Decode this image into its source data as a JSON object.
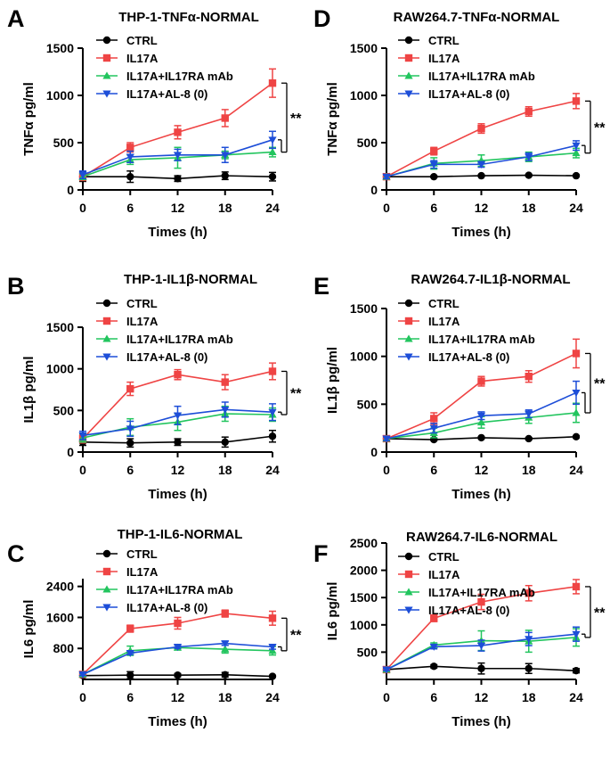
{
  "chart_data": [
    {
      "panel_label": "A",
      "type": "line",
      "title": "THP-1-TNFα-NORMAL",
      "xlabel": "Times (h)",
      "ylabel": "TNFα pg/ml",
      "xlim": [
        0,
        24
      ],
      "ylim": [
        0,
        1500
      ],
      "x_ticks": [
        0,
        6,
        12,
        18,
        24
      ],
      "y_ticks": [
        0,
        500,
        1000,
        1500
      ],
      "x": [
        0,
        6,
        12,
        18,
        24
      ],
      "legend": [
        "CTRL",
        "IL17A",
        "IL17A+IL17RA mAb",
        "IL17A+AL-8 (0)"
      ],
      "series": [
        {
          "name": "CTRL",
          "color": "#000000",
          "marker": "circle",
          "values": [
            140,
            140,
            120,
            150,
            140
          ],
          "errors": [
            50,
            60,
            30,
            40,
            45
          ]
        },
        {
          "name": "IL17A",
          "color": "#ef4444",
          "marker": "square",
          "values": [
            140,
            450,
            610,
            760,
            1130
          ],
          "errors": [
            40,
            50,
            70,
            90,
            150
          ]
        },
        {
          "name": "IL17A+IL17RA mAb",
          "color": "#22c55e",
          "marker": "triangle-up",
          "values": [
            140,
            320,
            340,
            370,
            400
          ],
          "errors": [
            30,
            50,
            110,
            40,
            50
          ]
        },
        {
          "name": "IL17A+AL-8 (0)",
          "color": "#1d4ed8",
          "marker": "triangle-down",
          "values": [
            160,
            350,
            370,
            370,
            530
          ],
          "errors": [
            40,
            60,
            60,
            80,
            90
          ]
        }
      ],
      "significance": "**"
    },
    {
      "panel_label": "D",
      "type": "line",
      "title": "RAW264.7-TNFα-NORMAL",
      "xlabel": "Times (h)",
      "ylabel": "TNFα pg/ml",
      "xlim": [
        0,
        24
      ],
      "ylim": [
        0,
        1500
      ],
      "x_ticks": [
        0,
        6,
        12,
        18,
        24
      ],
      "y_ticks": [
        0,
        500,
        1000,
        1500
      ],
      "x": [
        0,
        6,
        12,
        18,
        24
      ],
      "legend": [
        "CTRL",
        "IL17A",
        "IL17A+IL17RA mAb",
        "IL17A+AL-8 (0)"
      ],
      "series": [
        {
          "name": "CTRL",
          "color": "#000000",
          "marker": "circle",
          "values": [
            140,
            140,
            150,
            155,
            150
          ],
          "errors": [
            10,
            10,
            10,
            10,
            10
          ]
        },
        {
          "name": "IL17A",
          "color": "#ef4444",
          "marker": "square",
          "values": [
            140,
            410,
            650,
            830,
            940
          ],
          "errors": [
            20,
            40,
            50,
            50,
            80
          ]
        },
        {
          "name": "IL17A+IL17RA mAb",
          "color": "#22c55e",
          "marker": "triangle-up",
          "values": [
            140,
            280,
            310,
            350,
            390
          ],
          "errors": [
            20,
            60,
            60,
            50,
            50
          ]
        },
        {
          "name": "IL17A+AL-8 (0)",
          "color": "#1d4ed8",
          "marker": "triangle-down",
          "values": [
            140,
            270,
            270,
            350,
            470
          ],
          "errors": [
            20,
            40,
            30,
            40,
            50
          ]
        }
      ],
      "significance": "**"
    },
    {
      "panel_label": "B",
      "type": "line",
      "title": "THP-1-IL1β-NORMAL",
      "xlabel": "Times (h)",
      "ylabel": "IL1β pg/ml",
      "xlim": [
        0,
        24
      ],
      "ylim": [
        0,
        1500
      ],
      "x_ticks": [
        0,
        6,
        12,
        18,
        24
      ],
      "y_ticks": [
        0,
        500,
        1000,
        1500
      ],
      "x": [
        0,
        6,
        12,
        18,
        24
      ],
      "legend": [
        "CTRL",
        "IL17A",
        "IL17A+IL17RA mAb",
        "IL17A+AL-8 (0)"
      ],
      "series": [
        {
          "name": "CTRL",
          "color": "#000000",
          "marker": "circle",
          "values": [
            120,
            110,
            120,
            120,
            190
          ],
          "errors": [
            40,
            50,
            40,
            60,
            70
          ]
        },
        {
          "name": "IL17A",
          "color": "#ef4444",
          "marker": "square",
          "values": [
            160,
            760,
            930,
            840,
            970
          ],
          "errors": [
            50,
            80,
            60,
            90,
            100
          ]
        },
        {
          "name": "IL17A+IL17RA mAb",
          "color": "#22c55e",
          "marker": "triangle-up",
          "values": [
            170,
            300,
            360,
            460,
            450
          ],
          "errors": [
            50,
            100,
            100,
            90,
            80
          ]
        },
        {
          "name": "IL17A+AL-8 (0)",
          "color": "#1d4ed8",
          "marker": "triangle-down",
          "values": [
            200,
            280,
            440,
            510,
            480
          ],
          "errors": [
            50,
            90,
            110,
            90,
            100
          ]
        }
      ],
      "significance": "**"
    },
    {
      "panel_label": "E",
      "type": "line",
      "title": "RAW264.7-IL1β-NORMAL",
      "xlabel": "Times (h)",
      "ylabel": "IL1β pg/ml",
      "xlim": [
        0,
        24
      ],
      "ylim": [
        0,
        1500
      ],
      "x_ticks": [
        0,
        6,
        12,
        18,
        24
      ],
      "y_ticks": [
        0,
        500,
        1000,
        1500
      ],
      "x": [
        0,
        6,
        12,
        18,
        24
      ],
      "legend": [
        "CTRL",
        "IL17A",
        "IL17A+IL17RA mAb",
        "IL17A+AL-8 (0)"
      ],
      "series": [
        {
          "name": "CTRL",
          "color": "#000000",
          "marker": "circle",
          "values": [
            140,
            130,
            150,
            140,
            160
          ],
          "errors": [
            10,
            10,
            10,
            10,
            10
          ]
        },
        {
          "name": "IL17A",
          "color": "#ef4444",
          "marker": "square",
          "values": [
            140,
            350,
            740,
            790,
            1030
          ],
          "errors": [
            20,
            60,
            50,
            60,
            150
          ]
        },
        {
          "name": "IL17A+IL17RA mAb",
          "color": "#22c55e",
          "marker": "triangle-up",
          "values": [
            140,
            200,
            310,
            360,
            410
          ],
          "errors": [
            20,
            50,
            60,
            60,
            100
          ]
        },
        {
          "name": "IL17A+AL-8 (0)",
          "color": "#1d4ed8",
          "marker": "triangle-down",
          "values": [
            140,
            250,
            380,
            400,
            620
          ],
          "errors": [
            20,
            50,
            40,
            40,
            120
          ]
        }
      ],
      "significance": "**"
    },
    {
      "panel_label": "C",
      "type": "line",
      "title": "THP-1-IL6-NORMAL",
      "xlabel": "Times (h)",
      "ylabel": "IL6 pg/ml",
      "xlim": [
        0,
        24
      ],
      "ylim": [
        0,
        2600
      ],
      "x_ticks": [
        0,
        6,
        12,
        18,
        24
      ],
      "y_ticks": [
        800,
        1600,
        2400
      ],
      "x": [
        0,
        6,
        12,
        18,
        24
      ],
      "legend": [
        "CTRL",
        "IL17A",
        "IL17A+IL17RA mAb",
        "IL17A+AL-8 (0)"
      ],
      "series": [
        {
          "name": "CTRL",
          "color": "#000000",
          "marker": "circle",
          "values": [
            100,
            110,
            110,
            120,
            80
          ],
          "errors": [
            30,
            90,
            40,
            60,
            20
          ]
        },
        {
          "name": "IL17A",
          "color": "#ef4444",
          "marker": "square",
          "values": [
            130,
            1310,
            1450,
            1700,
            1580
          ],
          "errors": [
            30,
            90,
            150,
            90,
            180
          ]
        },
        {
          "name": "IL17A+IL17RA mAb",
          "color": "#22c55e",
          "marker": "triangle-up",
          "values": [
            130,
            740,
            820,
            780,
            740
          ],
          "errors": [
            30,
            120,
            60,
            100,
            110
          ]
        },
        {
          "name": "IL17A+AL-8 (0)",
          "color": "#1d4ed8",
          "marker": "triangle-down",
          "values": [
            130,
            680,
            840,
            930,
            840
          ],
          "errors": [
            30,
            40,
            40,
            50,
            60
          ]
        }
      ],
      "significance": "**"
    },
    {
      "panel_label": "F",
      "type": "line",
      "title": "RAW264.7-IL6-NORMAL",
      "xlabel": "Times (h)",
      "ylabel": "IL6 pg/ml",
      "xlim": [
        0,
        24
      ],
      "ylim": [
        0,
        2500
      ],
      "x_ticks": [
        0,
        6,
        12,
        18,
        24
      ],
      "y_ticks": [
        500,
        1000,
        1500,
        2000,
        2500
      ],
      "x": [
        0,
        6,
        12,
        18,
        24
      ],
      "legend": [
        "CTRL",
        "IL17A",
        "IL17A+IL17RA mAb",
        "IL17A+AL-8 (0)"
      ],
      "series": [
        {
          "name": "CTRL",
          "color": "#000000",
          "marker": "circle",
          "values": [
            180,
            240,
            200,
            200,
            160
          ],
          "errors": [
            20,
            30,
            100,
            90,
            40
          ]
        },
        {
          "name": "IL17A",
          "color": "#ef4444",
          "marker": "square",
          "values": [
            180,
            1120,
            1420,
            1580,
            1700
          ],
          "errors": [
            20,
            60,
            140,
            140,
            130
          ]
        },
        {
          "name": "IL17A+IL17RA mAb",
          "color": "#22c55e",
          "marker": "triangle-up",
          "values": [
            180,
            630,
            710,
            700,
            770
          ],
          "errors": [
            20,
            40,
            180,
            200,
            160
          ]
        },
        {
          "name": "IL17A+AL-8 (0)",
          "color": "#1d4ed8",
          "marker": "triangle-down",
          "values": [
            180,
            600,
            620,
            740,
            830
          ],
          "errors": [
            20,
            40,
            100,
            120,
            130
          ]
        }
      ],
      "significance": "**"
    }
  ]
}
